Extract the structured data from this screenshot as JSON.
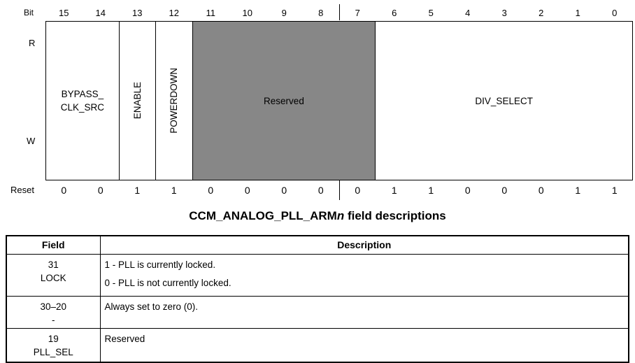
{
  "colors": {
    "reserved_bg": "#878787"
  },
  "register": {
    "bit_label": "Bit",
    "reset_label": "Reset",
    "read_label": "R",
    "write_label": "W",
    "bit_numbers": [
      "15",
      "14",
      "13",
      "12",
      "11",
      "10",
      "9",
      "8",
      "7",
      "6",
      "5",
      "4",
      "3",
      "2",
      "1",
      "0"
    ],
    "reset_values": [
      "0",
      "0",
      "1",
      "1",
      "0",
      "0",
      "0",
      "0",
      "0",
      "1",
      "1",
      "0",
      "0",
      "0",
      "1",
      "1"
    ],
    "fields": [
      {
        "name": "BYPASS_CLK_SRC",
        "line1": "BYPASS_",
        "line2": "CLK_SRC",
        "bits": "15-14"
      },
      {
        "label": "ENABLE",
        "bits": "13"
      },
      {
        "label": "POWERDOWN",
        "bits": "12"
      },
      {
        "label": "Reserved",
        "bits": "11-7"
      },
      {
        "label": "DIV_SELECT",
        "bits": "6-0"
      }
    ]
  },
  "title": {
    "prefix": "CCM_ANALOG_PLL_ARM",
    "register_variable": "n",
    "suffix": " field descriptions"
  },
  "table": {
    "headers": {
      "field": "Field",
      "description": "Description"
    },
    "rows": [
      {
        "bits": "31",
        "name": "LOCK",
        "description_lines": [
          "1 - PLL is currently locked.",
          "0 - PLL is not currently locked."
        ]
      },
      {
        "bits": "30–20",
        "name": "-",
        "description_lines": [
          "Always set to zero (0)."
        ]
      },
      {
        "bits": "19",
        "name": "PLL_SEL",
        "description_lines": [
          "Reserved"
        ]
      }
    ]
  }
}
